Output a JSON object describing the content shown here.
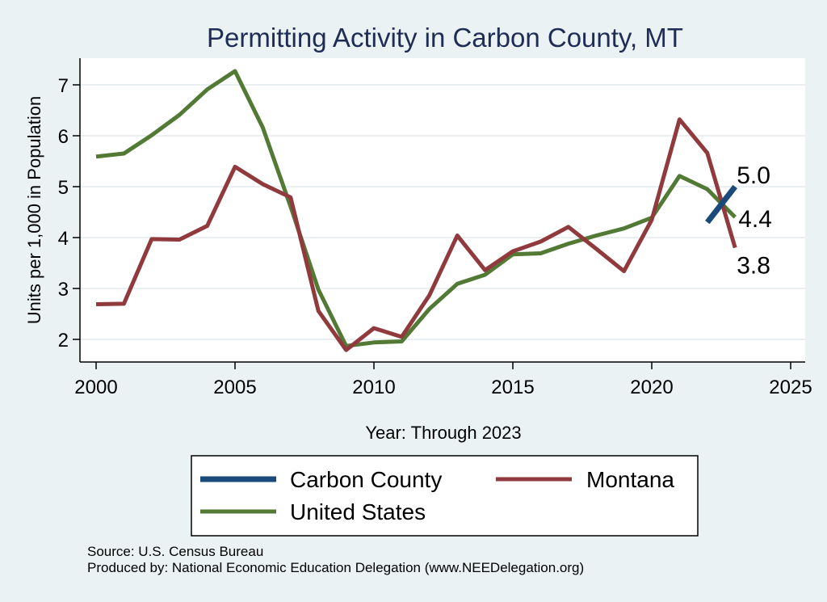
{
  "chart_data": {
    "type": "line",
    "title": "Permitting Activity in Carbon County, MT",
    "xlabel": "Year: Through 2023",
    "ylabel": "Units per 1,000 in Population",
    "xlim": [
      2000,
      2025
    ],
    "ylim": [
      1.7,
      7.5
    ],
    "xticks": [
      2000,
      2005,
      2010,
      2015,
      2020,
      2025
    ],
    "yticks": [
      2,
      3,
      4,
      5,
      6,
      7
    ],
    "grid": true,
    "legend_position": "bottom",
    "series": [
      {
        "name": "Carbon County",
        "color": "#1a4a7a",
        "x": [
          2022,
          2023
        ],
        "y": [
          4.3,
          5.0
        ],
        "end_label": "5.0"
      },
      {
        "name": "Montana",
        "color": "#903a3e",
        "x": [
          2000,
          2001,
          2002,
          2003,
          2004,
          2005,
          2006,
          2007,
          2008,
          2009,
          2010,
          2011,
          2012,
          2013,
          2014,
          2015,
          2016,
          2017,
          2018,
          2019,
          2020,
          2021,
          2022,
          2023
        ],
        "y": [
          2.69,
          2.7,
          3.97,
          3.96,
          4.23,
          5.39,
          5.05,
          4.79,
          2.56,
          1.79,
          2.22,
          2.05,
          2.87,
          4.04,
          3.36,
          3.73,
          3.92,
          4.21,
          3.78,
          3.34,
          4.35,
          6.32,
          5.66,
          3.8
        ],
        "end_label": "3.8"
      },
      {
        "name": "United States",
        "color": "#527a35",
        "x": [
          2000,
          2001,
          2002,
          2003,
          2004,
          2005,
          2006,
          2007,
          2008,
          2009,
          2010,
          2011,
          2012,
          2013,
          2014,
          2015,
          2016,
          2017,
          2018,
          2019,
          2020,
          2021,
          2022,
          2023
        ],
        "y": [
          5.59,
          5.65,
          6.01,
          6.41,
          6.91,
          7.27,
          6.16,
          4.61,
          2.98,
          1.87,
          1.94,
          1.96,
          2.6,
          3.09,
          3.27,
          3.67,
          3.69,
          3.88,
          4.04,
          4.18,
          4.39,
          5.21,
          4.95,
          4.4
        ],
        "end_label": "4.4"
      }
    ],
    "legend": [
      {
        "label": "Carbon County",
        "color": "#1a4a7a"
      },
      {
        "label": "Montana",
        "color": "#903a3e"
      },
      {
        "label": "United States",
        "color": "#527a35"
      }
    ]
  },
  "notes": {
    "source": "Source: U.S. Census Bureau",
    "produced_by": "Produced by: National Economic Education Delegation (www.NEEDelegation.org)"
  }
}
